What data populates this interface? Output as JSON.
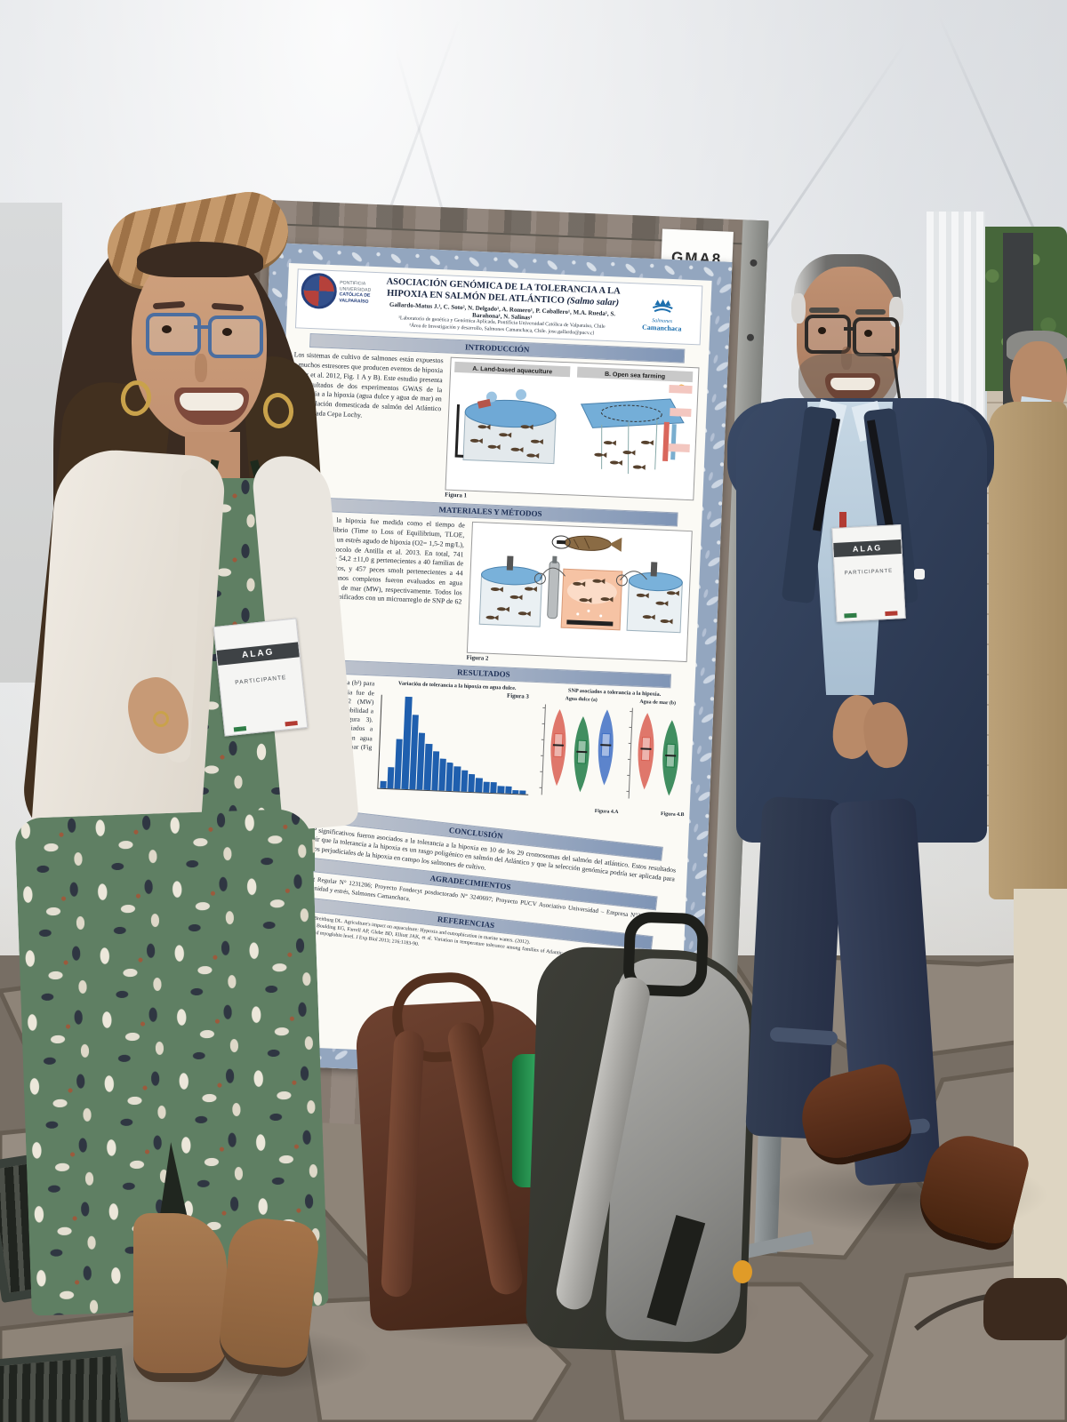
{
  "scene": {
    "gma_tag": {
      "code": "GMA8",
      "sub": "ALAG"
    },
    "badge_woman": {
      "org": "ALAG",
      "role": "PARTICIPANTE"
    },
    "badge_man": {
      "org": "ALAG",
      "role": "PARTICIPANTE"
    }
  },
  "poster": {
    "title_main": "ASOCIACIÓN GENÓMICA DE LA TOLERANCIA A LA HIPOXIA EN SALMÓN DEL ATLÁNTICO",
    "title_species": "(Salmo salar)",
    "authors": "Gallardo-Matus J.¹, C. Soto², N. Delgado¹, A. Romero¹, P. Caballero¹, M.A. Rueda¹, S. Barahona¹, N. Salinas¹",
    "affil1": "¹Laboratorio de genética y Genómica Aplicada, Pontificia Universidad Católica de Valparaíso, Chile",
    "affil2": "²Área de Investigación y desarrollo, Salmones Camanchaca, Chile. jose.gallardo@pucv.cl",
    "logo_left": {
      "l1": "PONTIFICIA",
      "l2": "UNIVERSIDAD",
      "l3": "CATÓLICA DE",
      "l4": "VALPARAÍSO"
    },
    "logo_right_top": "Salmones",
    "logo_right_bottom": "Camanchaca",
    "headers": {
      "intro": "INTRODUCCIÓN",
      "methods": "MATERIALES Y MÉTODOS",
      "results": "RESULTADOS",
      "conclusion": "CONCLUSIÓN",
      "acks": "AGRADECIMIENTOS",
      "refs": "REFERENCIAS"
    },
    "intro_text": "Los sistemas de cultivo de salmones están expuestos a muchos estresores que producen eventos de hipoxia (Diaz et al. 2012, Fig. 1 A y B). Este estudio presenta los resultados de dos experimentos GWAS de la tolerancia a la hipoxia (agua dulce y agua de mar) en una población domesticada de salmón del Atlántico denominada Cepa Lochy.",
    "methods_text": "La tolerancia a la hipoxia fue medida como el tiempo de pérdida de equilibrio (Time to Loss of Equilibrium, TLOE, Figura 2) frente a un estrés agudo de hipoxia (O2= 1,5-2 mg/L), siguiendo el protocolo de Antilla et al. 2013. En total, 741 peces juveniles de 54,2 ±11,0 g pertenecientes a 40 familias de hermanos completos, y 457 peces smolt pertenecientes a 44 familias de hermanos completos fueron evaluados en agua dulce (FW) y agua de mar (MW), respectivamente. Todos los peces fueron genotipificados con un microarreglo de SNP de 62 K, marca Thermo.",
    "results_text": "La heredabilidad estimada (h²) para la tolerancia a la hipoxia fue de 0,23 (FW) y de 0,22 (MW) observando una gran variabilidad a nivel de fenotipos (Figura 3). Varios SNP fueron asociados a tolerancia a la hipoxia en agua dulce (Fig.4A) y agua de mar (Fig 4.B).",
    "conclusion_text": "Veintiocho SNP significativos fueron asociados a la tolerancia a la hipoxia en 10 de los 29 cromosomas del salmón del atlántico. Estos resultados permiten concluir que la tolerancia a la hipoxia es un rasgo poligénico en salmón del Atlántico y que la selección genómica podría ser aplicada para reducir los efectos perjudiciales de la hipoxia en campo los salmones de cultivo.",
    "acks_text": "Proyecto Fondecyt Regular N° 1231206; Proyecto Fondecyt posdoctorado N° 3240697; Proyecto PUCV Asociativo Universidad – Empresa N°39.365/2023; Proyecto I+D Inmunidad y estrés, Salmones Camanchaca.",
    "refs": [
      "1.  Diaz R, Rabalais NN, Breitburg DL. Agriculture's impact on aquaculture: Hypoxia and eutrophication in marine waters. (2012).",
      "2.  Anttila K, Dhillon RS, Boulding EG, Farrell AP, Glebe BD, Elliott JAK, et al. Variation in temperature tolerance among families of Atlantic salmon (Salmo salar) is associated with hypoxia tolerance, ventricle size and myoglobin level. J Exp Biol 2013; 216:1183-90."
    ],
    "figs": {
      "fig1_a": "A. Land-based aquaculture",
      "fig1_b": "B. Open sea farming",
      "fig1_cap": "Figura 1",
      "fig2_cap": "Figura 2"
    }
  },
  "chart_data": [
    {
      "type": "bar",
      "title": "Variación de tolerancia a la hipoxia en agua dulce.",
      "caption": "Figura 3",
      "xlabel": "",
      "ylabel": "",
      "values": [
        2,
        6,
        14,
        26,
        21,
        16,
        13,
        11,
        9,
        8,
        7,
        6,
        5,
        4,
        3,
        3,
        2,
        2,
        1,
        1
      ],
      "color": "#1f5fae",
      "grid": false,
      "legend": "none"
    },
    {
      "type": "violin",
      "title": "SNP asociados a tolerancia a la hipoxia.",
      "panels": [
        {
          "label": "Agua dulce (a)",
          "caption": "Figura 4.A",
          "colors": [
            "#d95f52",
            "#1e7a45",
            "#3f6fc4"
          ]
        },
        {
          "label": "Agua de mar (b)",
          "caption": "Figura 4.B",
          "colors": [
            "#d95f52",
            "#1e7a45"
          ]
        }
      ]
    }
  ]
}
